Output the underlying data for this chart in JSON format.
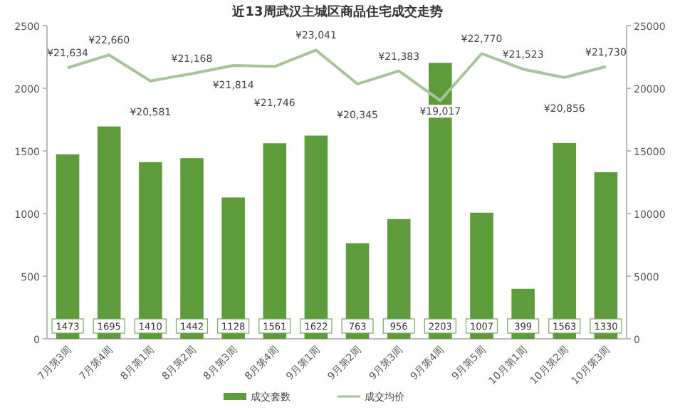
{
  "chart_data": {
    "type": "bar",
    "title": "近13周武汉主城区商品住宅成交走势",
    "categories": [
      "7月第3周",
      "7月第4周",
      "8月第1周",
      "8月第2周",
      "8月第3周",
      "8月第4周",
      "9月第1周",
      "9月第2周",
      "9月第3周",
      "9月第4周",
      "9月第5周",
      "10月第1周",
      "10月第2周",
      "10月第3周"
    ],
    "series": [
      {
        "name": "成交套数",
        "color": "#5e9b3a",
        "values": [
          1473,
          1695,
          1410,
          1442,
          1128,
          1561,
          1622,
          763,
          956,
          2203,
          1007,
          399,
          1563,
          1330
        ]
      },
      {
        "name": "成交均价",
        "type": "line",
        "axis": "y2",
        "color": "#a9c49b",
        "values": [
          21634,
          22660,
          20581,
          21168,
          21814,
          21746,
          23041,
          20345,
          21383,
          19017,
          22770,
          21523,
          20856,
          21730
        ],
        "value_labels": [
          "¥21,634",
          "¥22,660",
          "¥20,581",
          "¥21,168",
          "¥21,814",
          "¥21,746",
          "¥23,041",
          "¥20,345",
          "¥21,383",
          "¥19,017",
          "¥22,770",
          "¥21,523",
          "¥20,856",
          "¥21,730"
        ]
      }
    ],
    "data_labels": true,
    "ylim": [
      0,
      2500
    ],
    "yticks": [
      0,
      500,
      1000,
      1500,
      2000,
      2500
    ],
    "y2lim": [
      0,
      25000
    ],
    "y2ticks": [
      0,
      5000,
      10000,
      15000,
      20000,
      25000
    ],
    "grid": false,
    "legend": "bottom"
  }
}
